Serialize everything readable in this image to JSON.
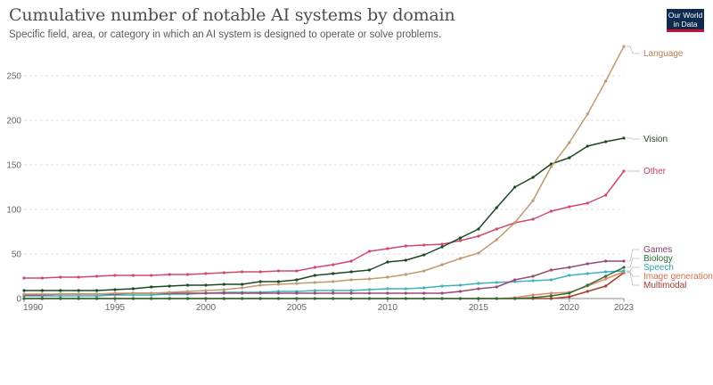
{
  "header": {
    "title": "Cumulative number of notable AI systems by domain",
    "subtitle": "Specific field, area, or category in which an AI system is designed to operate or solve problems.",
    "logo_line1": "Our World",
    "logo_line2": "in Data"
  },
  "chart_data": {
    "type": "line",
    "title": "Cumulative number of notable AI systems by domain",
    "subtitle": "Specific field, area, or category in which an AI system is designed to operate or solve problems.",
    "xlabel": "",
    "ylabel": "",
    "xlim": [
      1990,
      2023
    ],
    "ylim": [
      0,
      280
    ],
    "x_ticks": [
      1990,
      1995,
      2000,
      2005,
      2010,
      2015,
      2020,
      2023
    ],
    "y_ticks": [
      0,
      50,
      100,
      150,
      200,
      250
    ],
    "grid": "horizontal dashed",
    "legend": "line-end labels (right)",
    "x": [
      1990,
      1991,
      1992,
      1993,
      1994,
      1995,
      1996,
      1997,
      1998,
      1999,
      2000,
      2001,
      2002,
      2003,
      2004,
      2005,
      2006,
      2007,
      2008,
      2009,
      2010,
      2011,
      2012,
      2013,
      2014,
      2015,
      2016,
      2017,
      2018,
      2019,
      2020,
      2021,
      2022,
      2023
    ],
    "series": [
      {
        "name": "Language",
        "color": "#c09a6e",
        "values": [
          5,
          5,
          5,
          5,
          5,
          6,
          6,
          6,
          7,
          8,
          9,
          10,
          12,
          15,
          16,
          17,
          18,
          19,
          21,
          22,
          24,
          27,
          31,
          38,
          45,
          51,
          66,
          85,
          110,
          148,
          175,
          207,
          244,
          283
        ]
      },
      {
        "name": "Vision",
        "color": "#1d4723",
        "values": [
          9,
          9,
          9,
          9,
          9,
          10,
          11,
          13,
          14,
          15,
          15,
          16,
          16,
          19,
          19,
          21,
          26,
          28,
          30,
          32,
          41,
          43,
          49,
          58,
          68,
          78,
          102,
          125,
          136,
          151,
          158,
          171,
          176,
          180
        ]
      },
      {
        "name": "Other",
        "color": "#d04a6c",
        "values": [
          23,
          23,
          24,
          24,
          25,
          26,
          26,
          26,
          27,
          27,
          28,
          29,
          30,
          30,
          31,
          31,
          35,
          38,
          42,
          53,
          56,
          59,
          60,
          61,
          65,
          70,
          78,
          85,
          89,
          98,
          103,
          107,
          116,
          143
        ]
      },
      {
        "name": "Games",
        "color": "#9a4975",
        "values": [
          4,
          4,
          5,
          5,
          5,
          5,
          6,
          6,
          6,
          6,
          6,
          6,
          6,
          6,
          6,
          6,
          6,
          6,
          6,
          6,
          6,
          6,
          6,
          6,
          8,
          11,
          13,
          21,
          25,
          32,
          35,
          39,
          42,
          42
        ]
      },
      {
        "name": "Biology",
        "color": "#2a6e37",
        "values": [
          0,
          0,
          0,
          0,
          0,
          0,
          0,
          0,
          0,
          0,
          0,
          0,
          0,
          0,
          0,
          0,
          0,
          0,
          0,
          0,
          0,
          0,
          0,
          0,
          0,
          0,
          0,
          0,
          1,
          3,
          6,
          15,
          25,
          35
        ]
      },
      {
        "name": "Speech",
        "color": "#3bb3bd",
        "values": [
          3,
          3,
          3,
          3,
          3,
          4,
          4,
          4,
          5,
          5,
          6,
          7,
          7,
          7,
          8,
          8,
          9,
          9,
          9,
          10,
          11,
          11,
          12,
          14,
          15,
          17,
          18,
          19,
          20,
          21,
          26,
          28,
          30,
          31
        ]
      },
      {
        "name": "Image generation",
        "color": "#e18864",
        "values": [
          0,
          0,
          0,
          0,
          0,
          0,
          0,
          0,
          0,
          0,
          0,
          0,
          0,
          0,
          0,
          0,
          0,
          0,
          0,
          0,
          0,
          0,
          0,
          0,
          0,
          0,
          0,
          1,
          4,
          6,
          7,
          14,
          22,
          30
        ]
      },
      {
        "name": "Multimodal",
        "color": "#a4402a",
        "values": [
          0,
          0,
          0,
          0,
          0,
          0,
          0,
          0,
          0,
          0,
          0,
          0,
          0,
          0,
          0,
          0,
          0,
          0,
          0,
          0,
          0,
          0,
          0,
          0,
          0,
          0,
          0,
          0,
          0,
          0,
          2,
          8,
          14,
          29
        ]
      }
    ]
  }
}
